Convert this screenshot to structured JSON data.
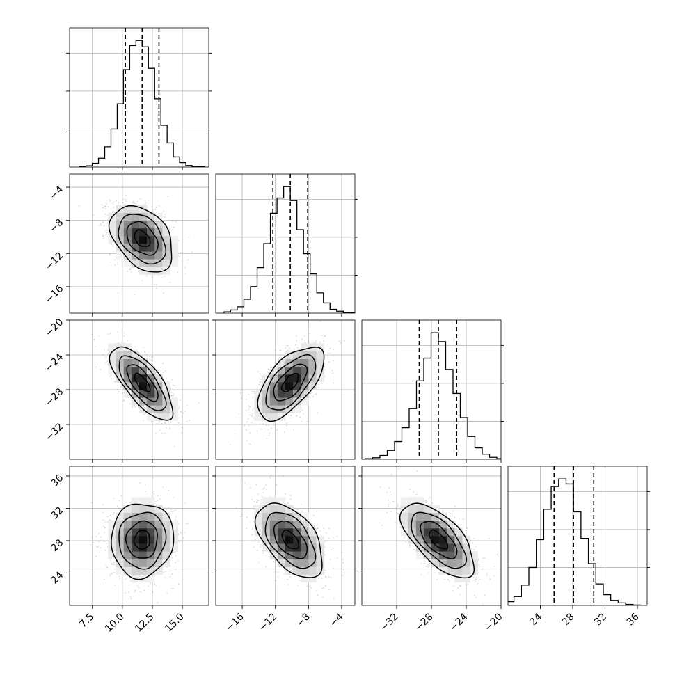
{
  "chart_data": {
    "type": "corner",
    "grid": true,
    "parameters": [
      {
        "range": [
          5.6,
          17.2
        ],
        "ticks": [
          7.5,
          10.0,
          12.5,
          15.0
        ],
        "tick_labels": [
          "7.5",
          "10.0",
          "12.5",
          "15.0"
        ],
        "mean": 11.65,
        "sd": 1.3,
        "quantiles": [
          10.25,
          11.65,
          13.05
        ],
        "hist_bins": [
          0.003,
          0.01,
          0.03,
          0.07,
          0.16,
          0.3,
          0.5,
          0.77,
          0.96,
          1.0,
          0.95,
          0.78,
          0.54,
          0.33,
          0.19,
          0.08,
          0.035,
          0.012,
          0.004,
          0.002
        ]
      },
      {
        "range": [
          -19.2,
          -2.4
        ],
        "ticks": [
          -16,
          -12,
          -8,
          -4
        ],
        "tick_labels": [
          "−16",
          "−12",
          "−8",
          "−4"
        ],
        "mean": -10.2,
        "sd": 2.0,
        "quantiles": [
          -12.3,
          -10.2,
          -8.1
        ],
        "hist_bins": [
          0.01,
          0.025,
          0.05,
          0.11,
          0.21,
          0.36,
          0.55,
          0.79,
          0.91,
          1.0,
          0.89,
          0.66,
          0.47,
          0.31,
          0.16,
          0.08,
          0.03,
          0.015,
          0.005,
          0.002
        ]
      },
      {
        "range": [
          -36,
          -20
        ],
        "ticks": [
          -32,
          -28,
          -24,
          -20
        ],
        "tick_labels": [
          "−32",
          "−28",
          "−24",
          "−20"
        ],
        "mean": -27.2,
        "sd": 2.1,
        "quantiles": [
          -29.4,
          -27.2,
          -25.1
        ],
        "hist_bins": [
          0.005,
          0.012,
          0.03,
          0.07,
          0.14,
          0.25,
          0.4,
          0.62,
          0.8,
          1.0,
          0.93,
          0.71,
          0.52,
          0.33,
          0.18,
          0.09,
          0.04,
          0.015,
          0.005,
          0.002
        ]
      },
      {
        "range": [
          20,
          37.2
        ],
        "ticks": [
          24,
          28,
          32,
          36
        ],
        "tick_labels": [
          "24",
          "28",
          "32",
          "36"
        ],
        "mean": 28.1,
        "sd": 2.3,
        "quantiles": [
          25.7,
          28.1,
          30.6
        ],
        "hist_bins": [
          0.01,
          0.03,
          0.07,
          0.16,
          0.3,
          0.52,
          0.76,
          0.94,
          1.0,
          0.96,
          0.74,
          0.53,
          0.33,
          0.17,
          0.085,
          0.04,
          0.02,
          0.008,
          0.003,
          0.001
        ]
      }
    ],
    "correlations": [
      [
        1,
        -0.38,
        -0.72,
        0.05
      ],
      [
        -0.38,
        1,
        0.62,
        -0.52
      ],
      [
        -0.72,
        0.62,
        1,
        -0.65
      ],
      [
        0.05,
        -0.52,
        -0.65,
        1
      ]
    ],
    "contour_levels": [
      0.5,
      1.0,
      1.5,
      2.0
    ]
  }
}
